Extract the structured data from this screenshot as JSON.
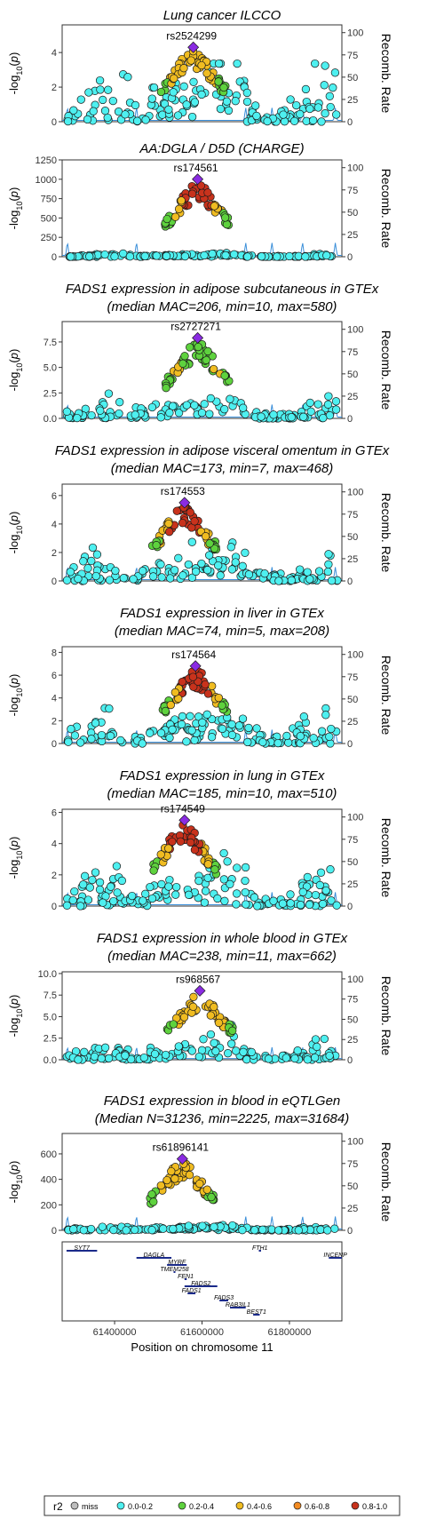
{
  "chart_data": [
    {
      "type": "scatter",
      "title": [
        "Lung cancer ILCCO"
      ],
      "lead_snp": "rs2524299",
      "ylim": [
        0,
        5.6
      ],
      "yticks": [
        0,
        2,
        4
      ],
      "peak": 4.3,
      "lead_x": 61580000,
      "ylabel": "-log10(p)",
      "y2label": "Recomb. Rate",
      "y2ticks": [
        0,
        25,
        50,
        75,
        100
      ],
      "bg_level": 0.9,
      "lead_r2": "0.4-0.6"
    },
    {
      "type": "scatter",
      "title": [
        "AA:DGLA / D5D (CHARGE)"
      ],
      "lead_snp": "rs174561",
      "ylim": [
        0,
        1250
      ],
      "yticks": [
        0,
        250,
        500,
        750,
        1000,
        1250
      ],
      "peak": 1000,
      "lead_x": 61590000,
      "ylabel": "-log10(p)",
      "y2label": "Recomb. Rate",
      "y2ticks": [
        0,
        25,
        50,
        75,
        100
      ],
      "bg_level": 10,
      "lead_r2": "0.8-1.0"
    },
    {
      "type": "scatter",
      "title": [
        "FADS1 expression in adipose subcutaneous in GTEx",
        "(median MAC=206, min=10, max=580)"
      ],
      "lead_snp": "rs2727271",
      "ylim": [
        0,
        9.5
      ],
      "yticks": [
        0,
        2.5,
        5.0,
        7.5
      ],
      "peak": 7.9,
      "lead_x": 61590000,
      "ylabel": "-log10(p)",
      "y2label": "Recomb. Rate",
      "y2ticks": [
        0,
        25,
        50,
        75,
        100
      ],
      "bg_level": 0.6,
      "lead_r2": "0.2-0.4"
    },
    {
      "type": "scatter",
      "title": [
        "FADS1 expression in adipose visceral omentum in GTEx",
        "(median MAC=173, min=7, max=468)"
      ],
      "lead_snp": "rs174553",
      "ylim": [
        0,
        6.8
      ],
      "yticks": [
        0,
        2,
        4,
        6
      ],
      "peak": 5.5,
      "lead_x": 61560000,
      "ylabel": "-log10(p)",
      "y2label": "Recomb. Rate",
      "y2ticks": [
        0,
        25,
        50,
        75,
        100
      ],
      "bg_level": 0.6,
      "lead_r2": "0.8-1.0"
    },
    {
      "type": "scatter",
      "title": [
        "FADS1 expression in liver in GTEx",
        "(median MAC=74, min=5, max=208)"
      ],
      "lead_snp": "rs174564",
      "ylim": [
        0,
        8.5
      ],
      "yticks": [
        0,
        2,
        4,
        6,
        8
      ],
      "peak": 6.8,
      "lead_x": 61585000,
      "ylabel": "-log10(p)",
      "y2label": "Recomb. Rate",
      "y2ticks": [
        0,
        25,
        50,
        75,
        100
      ],
      "bg_level": 0.8,
      "lead_r2": "0.8-1.0"
    },
    {
      "type": "scatter",
      "title": [
        "FADS1 expression in lung in GTEx",
        "(median MAC=185, min=10, max=510)"
      ],
      "lead_snp": "rs174549",
      "ylim": [
        0,
        6.2
      ],
      "yticks": [
        0,
        2,
        4,
        6
      ],
      "peak": 5.5,
      "lead_x": 61560000,
      "ylabel": "-log10(p)",
      "y2label": "Recomb. Rate",
      "y2ticks": [
        0,
        25,
        50,
        75,
        100
      ],
      "bg_level": 0.7,
      "lead_r2": "0.8-1.0"
    },
    {
      "type": "scatter",
      "title": [
        "FADS1 expression in whole blood in GTEx",
        "(median MAC=238, min=11, max=662)"
      ],
      "lead_snp": "rs968567",
      "ylim": [
        0,
        10.2
      ],
      "yticks": [
        0,
        2.5,
        5.0,
        7.5,
        10.0
      ],
      "peak": 8.0,
      "lead_x": 61595000,
      "ylabel": "-log10(p)",
      "y2label": "Recomb. Rate",
      "y2ticks": [
        0,
        25,
        50,
        75,
        100
      ],
      "bg_level": 0.7,
      "lead_r2": "0.4-0.6"
    },
    {
      "type": "scatter",
      "title": [
        "FADS1 expression in blood in eQTLGen",
        "(Median N=31236, min=2225, max=31684)"
      ],
      "lead_snp": "rs61896141",
      "ylim": [
        0,
        760
      ],
      "yticks": [
        0,
        200,
        400,
        600
      ],
      "peak": 560,
      "lead_x": 61555000,
      "ylabel": "-log10(p)",
      "y2label": "Recomb. Rate",
      "y2ticks": [
        0,
        25,
        50,
        75,
        100
      ],
      "bg_level": 10,
      "lead_r2": "0.4-0.6"
    }
  ],
  "genes": [
    {
      "name": "SYT7",
      "start": 61290000,
      "end": 61360000,
      "row": 0
    },
    {
      "name": "FTH1",
      "start": 61730000,
      "end": 61735000,
      "row": 0
    },
    {
      "name": "INCENP",
      "start": 61890000,
      "end": 61920000,
      "row": 1
    },
    {
      "name": "DAGLA",
      "start": 61450000,
      "end": 61530000,
      "row": 1
    },
    {
      "name": "MYRF",
      "start": 61520000,
      "end": 61565000,
      "row": 2
    },
    {
      "name": "TMEM258",
      "start": 61535000,
      "end": 61537000,
      "row": 3
    },
    {
      "name": "FEN1",
      "start": 61560000,
      "end": 61565000,
      "row": 4
    },
    {
      "name": "FADS2",
      "start": 61560000,
      "end": 61635000,
      "row": 5
    },
    {
      "name": "FADS1",
      "start": 61567000,
      "end": 61585000,
      "row": 6
    },
    {
      "name": "FADS3",
      "start": 61640000,
      "end": 61660000,
      "row": 7
    },
    {
      "name": "RAB3IL1",
      "start": 61664000,
      "end": 61700000,
      "row": 8
    },
    {
      "name": "BEST1",
      "start": 61717000,
      "end": 61732000,
      "row": 9
    }
  ],
  "xaxis": {
    "label": "Position on chromosome 11",
    "range": [
      61280000,
      61920000
    ],
    "ticks": [
      61400000,
      61600000,
      61800000
    ],
    "tick_labels": [
      "61400000",
      "61600000",
      "61800000"
    ]
  },
  "legend": {
    "title": "r2",
    "items": [
      {
        "label": "miss",
        "color": "#bdbdbd"
      },
      {
        "label": "0.0-0.2",
        "color": "#4ef0f0"
      },
      {
        "label": "0.2-0.4",
        "color": "#5ed23e"
      },
      {
        "label": "0.4-0.6",
        "color": "#f0bc21"
      },
      {
        "label": "0.6-0.8",
        "color": "#f38b22"
      },
      {
        "label": "0.8-1.0",
        "color": "#c8321c"
      }
    ]
  },
  "colors": {
    "lead": "#8a2be2",
    "recomb": "#3b8fd9",
    "gene": "#1a2a8a"
  }
}
